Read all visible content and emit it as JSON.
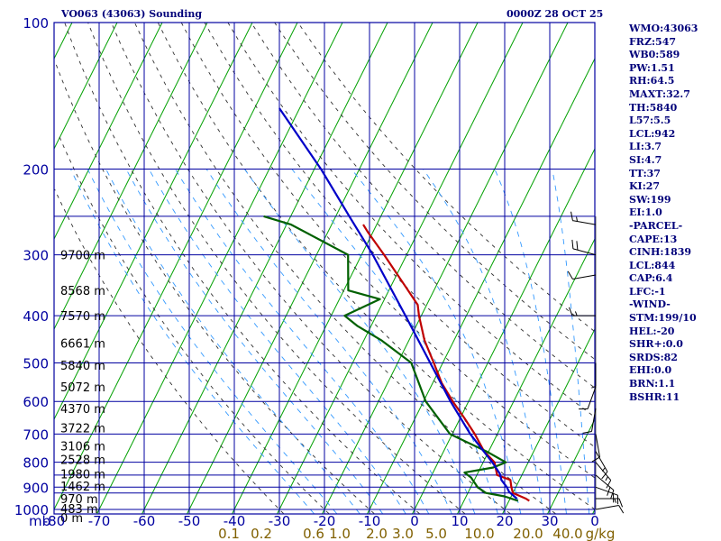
{
  "header": {
    "station": "VO063 (43063) Sounding",
    "time": "0000Z 28 OCT 25"
  },
  "indices": [
    "WMO:43063",
    "FRZ:547",
    "WB0:589",
    "PW:1.51",
    "RH:64.5",
    "MAXT:32.7",
    "TH:5840",
    "L57:5.5",
    "LCL:942",
    "LI:3.7",
    "SI:4.7",
    "TT:37",
    "KI:27",
    "SW:199",
    "EI:1.0",
    "-PARCEL-",
    "CAPE:13",
    "CINH:1839",
    "LCL:844",
    "CAP:6.4",
    "LFC:-1",
    "-WIND-",
    "STM:199/10",
    "HEL:-20",
    "SHR+:0.0",
    "SRDS:82",
    "EHI:0.0",
    "BRN:1.1",
    "BSHR:11"
  ],
  "colors": {
    "frame": "#0000a0",
    "temperature": "#c00000",
    "dewpoint": "#006000",
    "parcel": "#0000c8",
    "isotherm": "#00a000",
    "dry_adiabat": "#303030",
    "moist_adiabat": "#3399ff",
    "mixing_ratio_label": "#806000"
  },
  "chart_data": {
    "type": "skew-t log-p sounding",
    "y_axis": {
      "unit": "mb",
      "scale": "log",
      "range": [
        1000,
        100
      ],
      "ticks": [
        "100",
        "200",
        "300",
        "400",
        "500",
        "600",
        "700",
        "800",
        "900",
        "1000"
      ]
    },
    "x_axis": {
      "unit_label": "mb",
      "range": [
        -80,
        0
      ],
      "ticks": [
        "-80",
        "-70",
        "-60",
        "-50",
        "-40",
        "-30",
        "-20",
        "-10",
        "0",
        "10",
        "20",
        "30",
        "0"
      ]
    },
    "mixing_ratio_labels": [
      "0.1",
      "0.2",
      "0.6",
      "1.0",
      "2.0",
      "3.0",
      "5.0",
      "10.0",
      "20.0",
      "40.0"
    ],
    "mixing_ratio_unit": "g/kg",
    "height_labels": [
      {
        "p": 300,
        "text": "9700 m"
      },
      {
        "p": 355,
        "text": "8568 m"
      },
      {
        "p": 400,
        "text": "7570 m"
      },
      {
        "p": 455,
        "text": "6661 m"
      },
      {
        "p": 505,
        "text": "5840 m"
      },
      {
        "p": 560,
        "text": "5072 m"
      },
      {
        "p": 620,
        "text": "4370 m"
      },
      {
        "p": 680,
        "text": "3722 m"
      },
      {
        "p": 740,
        "text": "3106 m"
      },
      {
        "p": 790,
        "text": "2528 m"
      },
      {
        "p": 845,
        "text": "1980 m"
      },
      {
        "p": 895,
        "text": "1462 m"
      },
      {
        "p": 950,
        "text": "970 m"
      },
      {
        "p": 995,
        "text": "483 m"
      },
      {
        "p": 1040,
        "text": "0 m"
      }
    ],
    "series": [
      {
        "name": "temperature",
        "points": [
          [
            960,
            24.5
          ],
          [
            950,
            23.5
          ],
          [
            925,
            20
          ],
          [
            900,
            19
          ],
          [
            870,
            18
          ],
          [
            850,
            14.5
          ],
          [
            800,
            12.5
          ],
          [
            760,
            9
          ],
          [
            700,
            5
          ],
          [
            650,
            1
          ],
          [
            600,
            -3.5
          ],
          [
            550,
            -8
          ],
          [
            500,
            -12
          ],
          [
            450,
            -16.5
          ],
          [
            400,
            -20.5
          ],
          [
            380,
            -22
          ],
          [
            350,
            -26.5
          ],
          [
            300,
            -35
          ],
          [
            270,
            -41
          ],
          [
            260,
            -43
          ]
        ]
      },
      {
        "name": "dewpoint",
        "points": [
          [
            960,
            22
          ],
          [
            940,
            18.5
          ],
          [
            925,
            14
          ],
          [
            900,
            11.5
          ],
          [
            860,
            9
          ],
          [
            840,
            7
          ],
          [
            820,
            12.8
          ],
          [
            800,
            15
          ],
          [
            760,
            9.5
          ],
          [
            700,
            -0.5
          ],
          [
            600,
            -9.5
          ],
          [
            500,
            -17
          ],
          [
            450,
            -26
          ],
          [
            420,
            -33
          ],
          [
            400,
            -37
          ],
          [
            370,
            -31
          ],
          [
            355,
            -39
          ],
          [
            300,
            -43
          ],
          [
            260,
            -59
          ],
          [
            250,
            -66
          ]
        ]
      },
      {
        "name": "parcel",
        "points": [
          [
            950,
            21.5
          ],
          [
            920,
            19
          ],
          [
            900,
            18
          ],
          [
            870,
            16
          ],
          [
            845,
            15
          ],
          [
            800,
            12
          ],
          [
            700,
            4
          ],
          [
            600,
            -4
          ],
          [
            500,
            -12.8
          ],
          [
            400,
            -23.5
          ],
          [
            300,
            -37.5
          ],
          [
            250,
            -47
          ],
          [
            200,
            -58.5
          ],
          [
            150,
            -74.5
          ]
        ]
      }
    ],
    "wind_barbs": [
      {
        "p": 260,
        "dir": 280,
        "kt": 15
      },
      {
        "p": 300,
        "dir": 285,
        "kt": 20
      },
      {
        "p": 330,
        "dir": 260,
        "kt": 10
      },
      {
        "p": 400,
        "dir": 270,
        "kt": 15
      },
      {
        "p": 500,
        "dir": 180,
        "kt": 5
      },
      {
        "p": 560,
        "dir": 200,
        "kt": 10
      },
      {
        "p": 620,
        "dir": 190,
        "kt": 10
      },
      {
        "p": 700,
        "dir": 170,
        "kt": 10
      },
      {
        "p": 760,
        "dir": 150,
        "kt": 15
      },
      {
        "p": 800,
        "dir": 140,
        "kt": 15
      },
      {
        "p": 850,
        "dir": 130,
        "kt": 20
      },
      {
        "p": 900,
        "dir": 110,
        "kt": 20
      },
      {
        "p": 950,
        "dir": 90,
        "kt": 15
      },
      {
        "p": 1000,
        "dir": 80,
        "kt": 10
      }
    ]
  }
}
